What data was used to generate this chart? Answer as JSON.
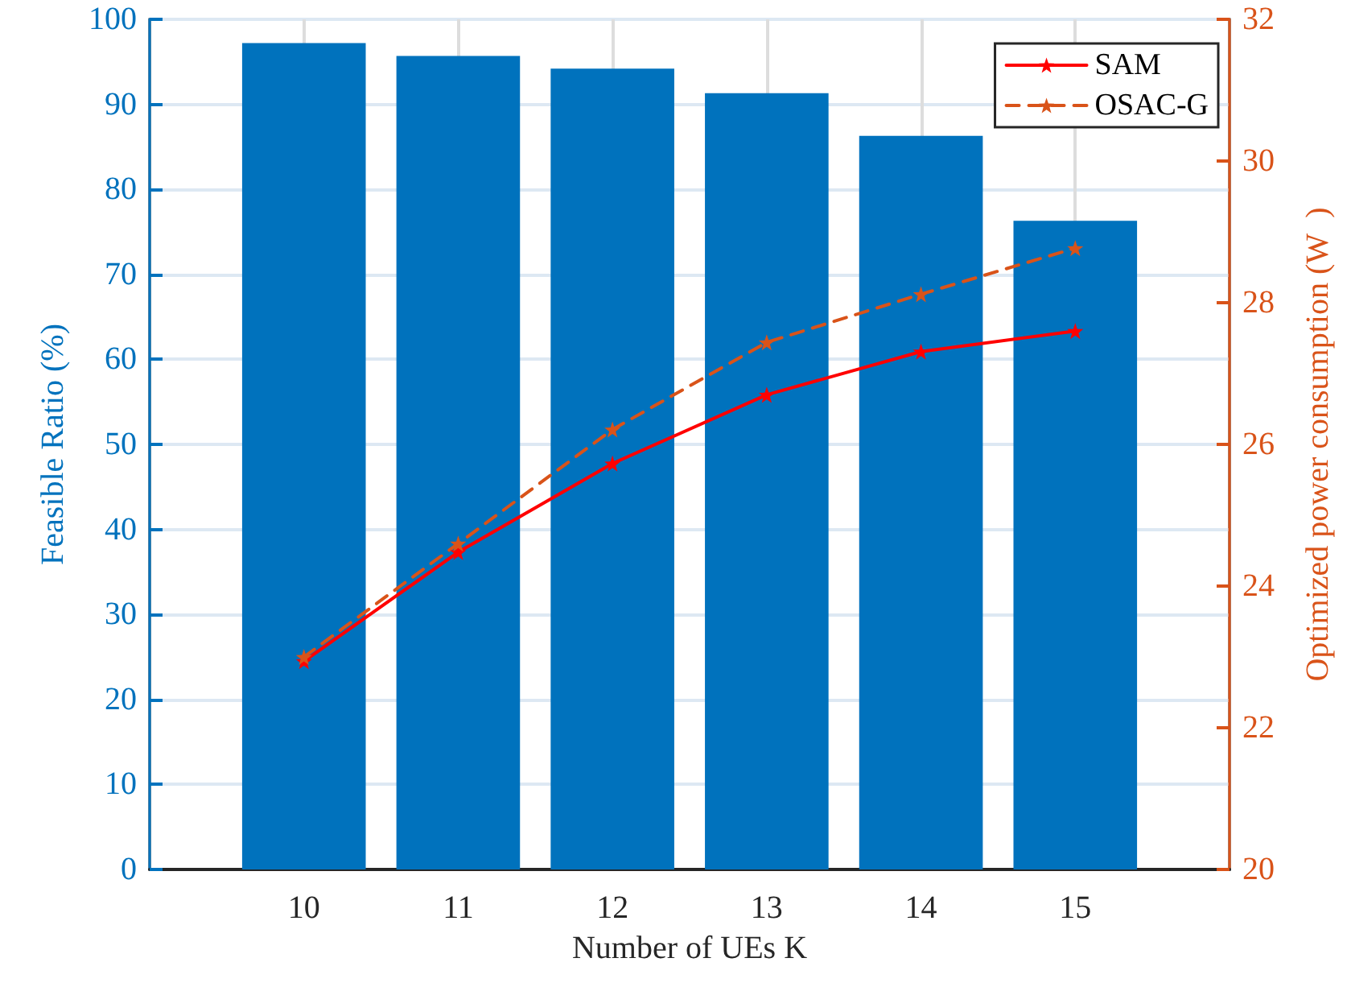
{
  "chart_data": {
    "type": "bar",
    "xlabel": "Number of UEs K",
    "ylabel": "Feasible Ratio (%)",
    "y2label": "Optimized power consumption (W  )",
    "x": [
      10,
      11,
      12,
      13,
      14,
      15
    ],
    "xlim": [
      9,
      16
    ],
    "xticks": [
      10,
      11,
      12,
      13,
      14,
      15
    ],
    "ylim": [
      0,
      100
    ],
    "yticks": [
      0,
      10,
      20,
      30,
      40,
      50,
      60,
      70,
      80,
      90,
      100
    ],
    "y2lim": [
      20,
      32
    ],
    "y2ticks": [
      20,
      22,
      24,
      26,
      28,
      30,
      32
    ],
    "series": [
      {
        "color": "#0072bd",
        "values": [
          97.2,
          95.7,
          94.2,
          91.3,
          86.3,
          76.3
        ]
      },
      {
        "type": "line",
        "name": "SAM",
        "axis": "y2",
        "color": "#ff0000",
        "line_style": "solid",
        "marker": "star",
        "values": [
          22.94,
          24.48,
          25.73,
          26.7,
          27.31,
          27.6
        ]
      },
      {
        "type": "line",
        "name": "OSAC-G",
        "axis": "y2",
        "color": "#d95319",
        "line_style": "dashed",
        "marker": "star",
        "values": [
          23.0,
          24.6,
          26.21,
          27.44,
          28.12,
          28.77
        ]
      }
    ],
    "grid": true,
    "legend": "top right"
  }
}
